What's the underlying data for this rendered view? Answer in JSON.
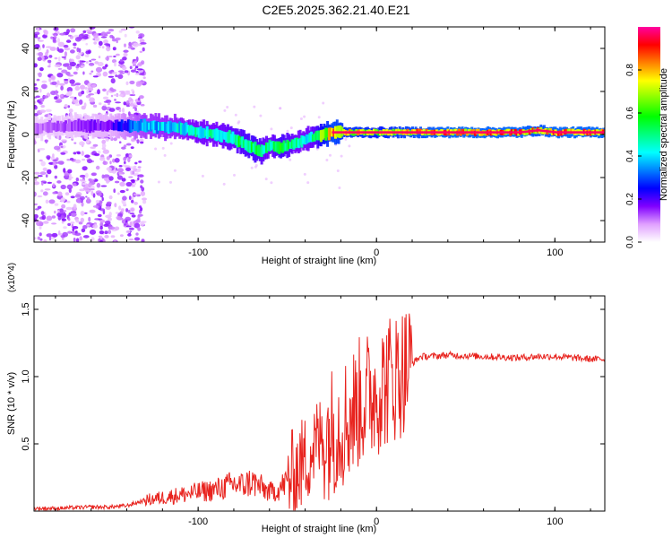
{
  "figure_title": "C2E5.2025.362.21.40.E21",
  "chart_data": [
    {
      "type": "heatmap",
      "title": "C2E5.2025.362.21.40.E21",
      "xlabel": "Height of straight line (km)",
      "ylabel": "Frequency (Hz)",
      "xlim": [
        -192,
        128
      ],
      "ylim": [
        -50,
        50
      ],
      "xticks": [
        -100,
        0,
        100
      ],
      "xtick_labels": [
        "-100",
        "0",
        "100"
      ],
      "yticks": [
        -40,
        -20,
        0,
        20,
        40
      ],
      "ytick_labels": [
        "-40",
        "-20",
        "0",
        "20",
        "40"
      ],
      "colorbar": {
        "label": "Normalized spectral amplitude",
        "range": [
          0,
          1
        ],
        "ticks": [
          0.0,
          0.2,
          0.4,
          0.6,
          0.8
        ],
        "tick_labels": [
          "0.0",
          "0.2",
          "0.4",
          "0.6",
          "0.8"
        ],
        "colormap": [
          "#ffffff",
          "#e0a0ff",
          "#8000ff",
          "#0000ff",
          "#0080ff",
          "#00ffff",
          "#00ff80",
          "#00ff00",
          "#80ff00",
          "#ffff00",
          "#ff8000",
          "#ff0000",
          "#ff00a0"
        ]
      },
      "ridge": {
        "x": [
          -192,
          -170,
          -150,
          -130,
          -110,
          -100,
          -90,
          -80,
          -70,
          -65,
          -60,
          -55,
          -50,
          -45,
          -40,
          -35,
          -30,
          -25,
          -20,
          -10,
          0,
          10,
          20,
          40,
          60,
          80,
          90,
          100,
          110,
          128
        ],
        "freq": [
          3,
          4,
          4,
          4,
          3,
          1,
          0,
          -2,
          -6,
          -8,
          -5,
          -6,
          -5,
          -4,
          -2,
          -1,
          0,
          1,
          1,
          1,
          1,
          1,
          1,
          1,
          1,
          1,
          2,
          1,
          1,
          1
        ],
        "amplitude": [
          0.12,
          0.15,
          0.2,
          0.4,
          0.45,
          0.5,
          0.5,
          0.55,
          0.6,
          0.55,
          0.5,
          0.6,
          0.55,
          0.5,
          0.5,
          0.55,
          0.75,
          0.85,
          0.8,
          0.8,
          0.75,
          0.8,
          0.85,
          0.9,
          0.9,
          0.9,
          0.85,
          0.9,
          0.9,
          0.9
        ]
      }
    },
    {
      "type": "line",
      "xlabel": "Height of straight line (km)",
      "ylabel": "SNR (10 * v/v)",
      "scale_label": "(x10^4)",
      "xlim": [
        -192,
        128
      ],
      "ylim": [
        0,
        1.6
      ],
      "xticks": [
        -100,
        0,
        100
      ],
      "xtick_labels": [
        "-100",
        "0",
        "100"
      ],
      "yticks": [
        0.5,
        1.0,
        1.5
      ],
      "ytick_labels": [
        "0.5",
        "1.0",
        "1.5"
      ],
      "color": "#e8231e",
      "series": [
        {
          "name": "SNR",
          "x": [
            -192,
            -180,
            -160,
            -150,
            -140,
            -135,
            -130,
            -120,
            -110,
            -100,
            -90,
            -85,
            -80,
            -75,
            -70,
            -65,
            -60,
            -55,
            -50,
            -45,
            -40,
            -35,
            -30,
            -25,
            -20,
            -15,
            -10,
            -5,
            0,
            5,
            8,
            10,
            15,
            20,
            25,
            30,
            40,
            60,
            80,
            90,
            100,
            110,
            120,
            128
          ],
          "y": [
            0.02,
            0.02,
            0.03,
            0.03,
            0.04,
            0.06,
            0.08,
            0.1,
            0.12,
            0.14,
            0.16,
            0.18,
            0.2,
            0.19,
            0.22,
            0.18,
            0.14,
            0.16,
            0.22,
            0.3,
            0.38,
            0.48,
            0.55,
            0.6,
            0.65,
            0.7,
            0.8,
            0.85,
            0.9,
            0.95,
            1.0,
            1.0,
            1.05,
            1.1,
            1.15,
            1.15,
            1.16,
            1.15,
            1.14,
            1.15,
            1.15,
            1.14,
            1.13,
            1.13
          ]
        }
      ]
    }
  ]
}
